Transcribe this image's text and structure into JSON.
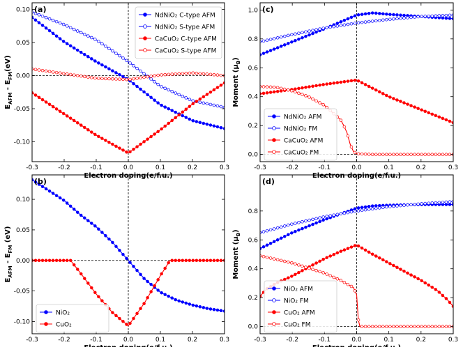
{
  "colors": {
    "blue": "#0000ff",
    "red": "#ff0000",
    "axis": "#000000",
    "dash": "#000000"
  },
  "chart_data": [
    {
      "type": "line",
      "panel_label": "(a)",
      "xlabel": "Electron doping(e/f.u.)",
      "ylabel": {
        "main": "E",
        "sub1": "AFM",
        "mid": " - E",
        "sub2": "FM",
        "tail": "(eV)"
      },
      "xlim": [
        -0.3,
        0.3
      ],
      "ylim": [
        -0.13,
        0.11
      ],
      "xticks": [
        -0.3,
        -0.2,
        -0.1,
        0.0,
        0.1,
        0.2,
        0.3
      ],
      "xtick_labels": [
        "-0.3",
        "-0.2",
        "-0.1",
        "0.0",
        "0.1",
        "0.2",
        "0.3"
      ],
      "yticks": [
        -0.1,
        -0.05,
        0.0,
        0.05,
        0.1
      ],
      "ytick_labels": [
        "-0.10",
        "-0.05",
        "0.00",
        "0.05",
        "0.10"
      ],
      "legend": "top-right",
      "series": [
        {
          "name": "NdNiO₂ C-type AFM",
          "color": "#0000ff",
          "marker": "filled",
          "x": [
            -0.3,
            -0.2,
            -0.1,
            0.0,
            0.1,
            0.2,
            0.3
          ],
          "y": [
            0.088,
            0.051,
            0.021,
            -0.006,
            -0.044,
            -0.068,
            -0.08
          ]
        },
        {
          "name": "NdNiO₂ S-type AFM",
          "color": "#0000ff",
          "marker": "open",
          "x": [
            -0.3,
            -0.2,
            -0.1,
            0.0,
            0.1,
            0.2,
            0.3
          ],
          "y": [
            0.096,
            0.077,
            0.054,
            0.021,
            -0.016,
            -0.038,
            -0.048
          ]
        },
        {
          "name": "CaCuO₂ C-type AFM",
          "color": "#ff0000",
          "marker": "filled",
          "x": [
            -0.3,
            -0.2,
            -0.1,
            0.0,
            0.1,
            0.2,
            0.3
          ],
          "y": [
            -0.026,
            -0.058,
            -0.09,
            -0.117,
            -0.082,
            -0.043,
            -0.011
          ]
        },
        {
          "name": "CaCuO₂ S-type AFM",
          "color": "#ff0000",
          "marker": "open",
          "x": [
            -0.3,
            -0.2,
            -0.1,
            0.0,
            0.1,
            0.2,
            0.3
          ],
          "y": [
            0.01,
            0.003,
            -0.004,
            -0.006,
            0.001,
            0.004,
            0.0
          ]
        }
      ]
    },
    {
      "type": "line",
      "panel_label": "(c)",
      "xlabel": "Electron doping(e/f.u.)",
      "ylabel": {
        "main": "Moment (μ",
        "sub1": "B",
        "mid": ")",
        "sub2": "",
        "tail": ""
      },
      "xlim": [
        -0.3,
        0.3
      ],
      "ylim": [
        -0.05,
        1.05
      ],
      "xticks": [
        -0.3,
        -0.2,
        -0.1,
        0.0,
        0.1,
        0.2,
        0.3
      ],
      "xtick_labels": [
        "-0.3",
        "-0.2",
        "-0.1",
        "0.0",
        "0.1",
        "0.2",
        "0.3"
      ],
      "yticks": [
        0.0,
        0.2,
        0.4,
        0.6,
        0.8,
        1.0
      ],
      "ytick_labels": [
        "0.0",
        "0.2",
        "0.4",
        "0.6",
        "0.8",
        "1.0"
      ],
      "legend": "bottom-left",
      "series": [
        {
          "name": "NdNiO₂ AFM",
          "color": "#0000ff",
          "marker": "filled",
          "x": [
            -0.3,
            -0.2,
            -0.1,
            0.0,
            0.05,
            0.1,
            0.2,
            0.3
          ],
          "y": [
            0.69,
            0.78,
            0.87,
            0.965,
            0.98,
            0.97,
            0.955,
            0.94
          ]
        },
        {
          "name": "NdNiO₂ FM",
          "color": "#0000ff",
          "marker": "open",
          "x": [
            -0.3,
            -0.2,
            -0.1,
            0.0,
            0.1,
            0.2,
            0.3
          ],
          "y": [
            0.78,
            0.83,
            0.875,
            0.91,
            0.935,
            0.955,
            0.965
          ]
        },
        {
          "name": "CaCuO₂ AFM",
          "color": "#ff0000",
          "marker": "filled",
          "x": [
            -0.3,
            -0.2,
            -0.1,
            0.0,
            0.1,
            0.2,
            0.3
          ],
          "y": [
            0.42,
            0.45,
            0.485,
            0.515,
            0.4,
            0.31,
            0.22
          ]
        },
        {
          "name": "CaCuO₂ FM",
          "color": "#ff0000",
          "marker": "open",
          "x": [
            -0.3,
            -0.25,
            -0.2,
            -0.15,
            -0.1,
            -0.07,
            -0.05,
            -0.04,
            -0.03,
            -0.02,
            -0.01,
            0.0,
            0.05,
            0.1,
            0.2,
            0.3
          ],
          "y": [
            0.47,
            0.465,
            0.44,
            0.4,
            0.34,
            0.28,
            0.24,
            0.2,
            0.15,
            0.07,
            0.02,
            0.005,
            0.0,
            0.0,
            0.0,
            0.0
          ]
        }
      ]
    },
    {
      "type": "line",
      "panel_label": "(b)",
      "xlabel": "Electron doping(e/f.u.)",
      "ylabel": {
        "main": "E",
        "sub1": "AFM",
        "mid": " - E",
        "sub2": "FM",
        "tail": " (eV)"
      },
      "xlim": [
        -0.3,
        0.3
      ],
      "ylim": [
        -0.12,
        0.14
      ],
      "xticks": [
        -0.3,
        -0.2,
        -0.1,
        0.0,
        0.1,
        0.2,
        0.3
      ],
      "xtick_labels": [
        "-0.3",
        "-0.2",
        "-0.1",
        "0.0",
        "0.1",
        "0.2",
        "0.3"
      ],
      "yticks": [
        -0.1,
        -0.05,
        0.0,
        0.05,
        0.1
      ],
      "ytick_labels": [
        "-0.10",
        "-0.05",
        "0.00",
        "0.05",
        "0.10"
      ],
      "legend": "bottom-left",
      "series": [
        {
          "name": "NiO₂",
          "color": "#0000ff",
          "marker": "filled",
          "x": [
            -0.3,
            -0.25,
            -0.2,
            -0.15,
            -0.1,
            -0.05,
            0.0,
            0.05,
            0.1,
            0.15,
            0.2,
            0.25,
            0.3
          ],
          "y": [
            0.132,
            0.115,
            0.098,
            0.075,
            0.055,
            0.03,
            0.0,
            -0.03,
            -0.052,
            -0.065,
            -0.073,
            -0.079,
            -0.083
          ]
        },
        {
          "name": "CuO₂",
          "color": "#ff0000",
          "marker": "filled",
          "x": [
            -0.3,
            -0.25,
            -0.2,
            -0.18,
            -0.15,
            -0.1,
            -0.05,
            0.0,
            0.05,
            0.1,
            0.13,
            0.15,
            0.2,
            0.25,
            0.3
          ],
          "y": [
            0.0,
            0.0,
            0.0,
            0.0,
            -0.02,
            -0.055,
            -0.085,
            -0.107,
            -0.07,
            -0.025,
            0.0,
            0.0,
            0.0,
            0.0,
            0.0
          ]
        }
      ]
    },
    {
      "type": "line",
      "panel_label": "(d)",
      "xlabel": "Electron doping(e/f.u.)",
      "ylabel": {
        "main": "Moment (μ",
        "sub1": "B",
        "mid": ")",
        "sub2": "",
        "tail": ""
      },
      "xlim": [
        -0.3,
        0.3
      ],
      "ylim": [
        -0.05,
        1.05
      ],
      "xticks": [
        -0.3,
        -0.2,
        -0.1,
        0.0,
        0.1,
        0.2,
        0.3
      ],
      "xtick_labels": [
        "-0.3",
        "-0.2",
        "-0.1",
        "0.0",
        "0.1",
        "0.2",
        "0.3"
      ],
      "yticks": [
        0.0,
        0.2,
        0.4,
        0.6,
        0.8
      ],
      "ytick_labels": [
        "0.0",
        "0.2",
        "0.4",
        "0.6",
        "0.8"
      ],
      "legend": "bottom-left",
      "series": [
        {
          "name": "NiO₂ AFM",
          "color": "#0000ff",
          "marker": "filled",
          "x": [
            -0.3,
            -0.2,
            -0.1,
            0.0,
            0.05,
            0.1,
            0.2,
            0.3
          ],
          "y": [
            0.54,
            0.65,
            0.74,
            0.82,
            0.835,
            0.84,
            0.845,
            0.845
          ]
        },
        {
          "name": "NiO₂ FM",
          "color": "#0000ff",
          "marker": "open",
          "x": [
            -0.3,
            -0.2,
            -0.1,
            0.0,
            0.1,
            0.2,
            0.3
          ],
          "y": [
            0.65,
            0.71,
            0.76,
            0.8,
            0.83,
            0.85,
            0.865
          ]
        },
        {
          "name": "CuO₂ AFM",
          "color": "#ff0000",
          "marker": "filled",
          "x": [
            -0.3,
            -0.28,
            -0.25,
            -0.2,
            -0.15,
            -0.1,
            -0.05,
            0.0,
            0.05,
            0.1,
            0.2,
            0.25,
            0.28,
            0.3
          ],
          "y": [
            0.21,
            0.26,
            0.3,
            0.35,
            0.41,
            0.47,
            0.52,
            0.565,
            0.5,
            0.44,
            0.32,
            0.25,
            0.19,
            0.14
          ]
        },
        {
          "name": "CuO₂ FM",
          "color": "#ff0000",
          "marker": "open",
          "x": [
            -0.3,
            -0.2,
            -0.1,
            -0.05,
            -0.01,
            0.0,
            0.005,
            0.01,
            0.05,
            0.1,
            0.2,
            0.3
          ],
          "y": [
            0.49,
            0.44,
            0.37,
            0.32,
            0.27,
            0.22,
            0.05,
            0.0,
            0.0,
            0.0,
            0.0,
            0.0
          ]
        }
      ]
    }
  ]
}
